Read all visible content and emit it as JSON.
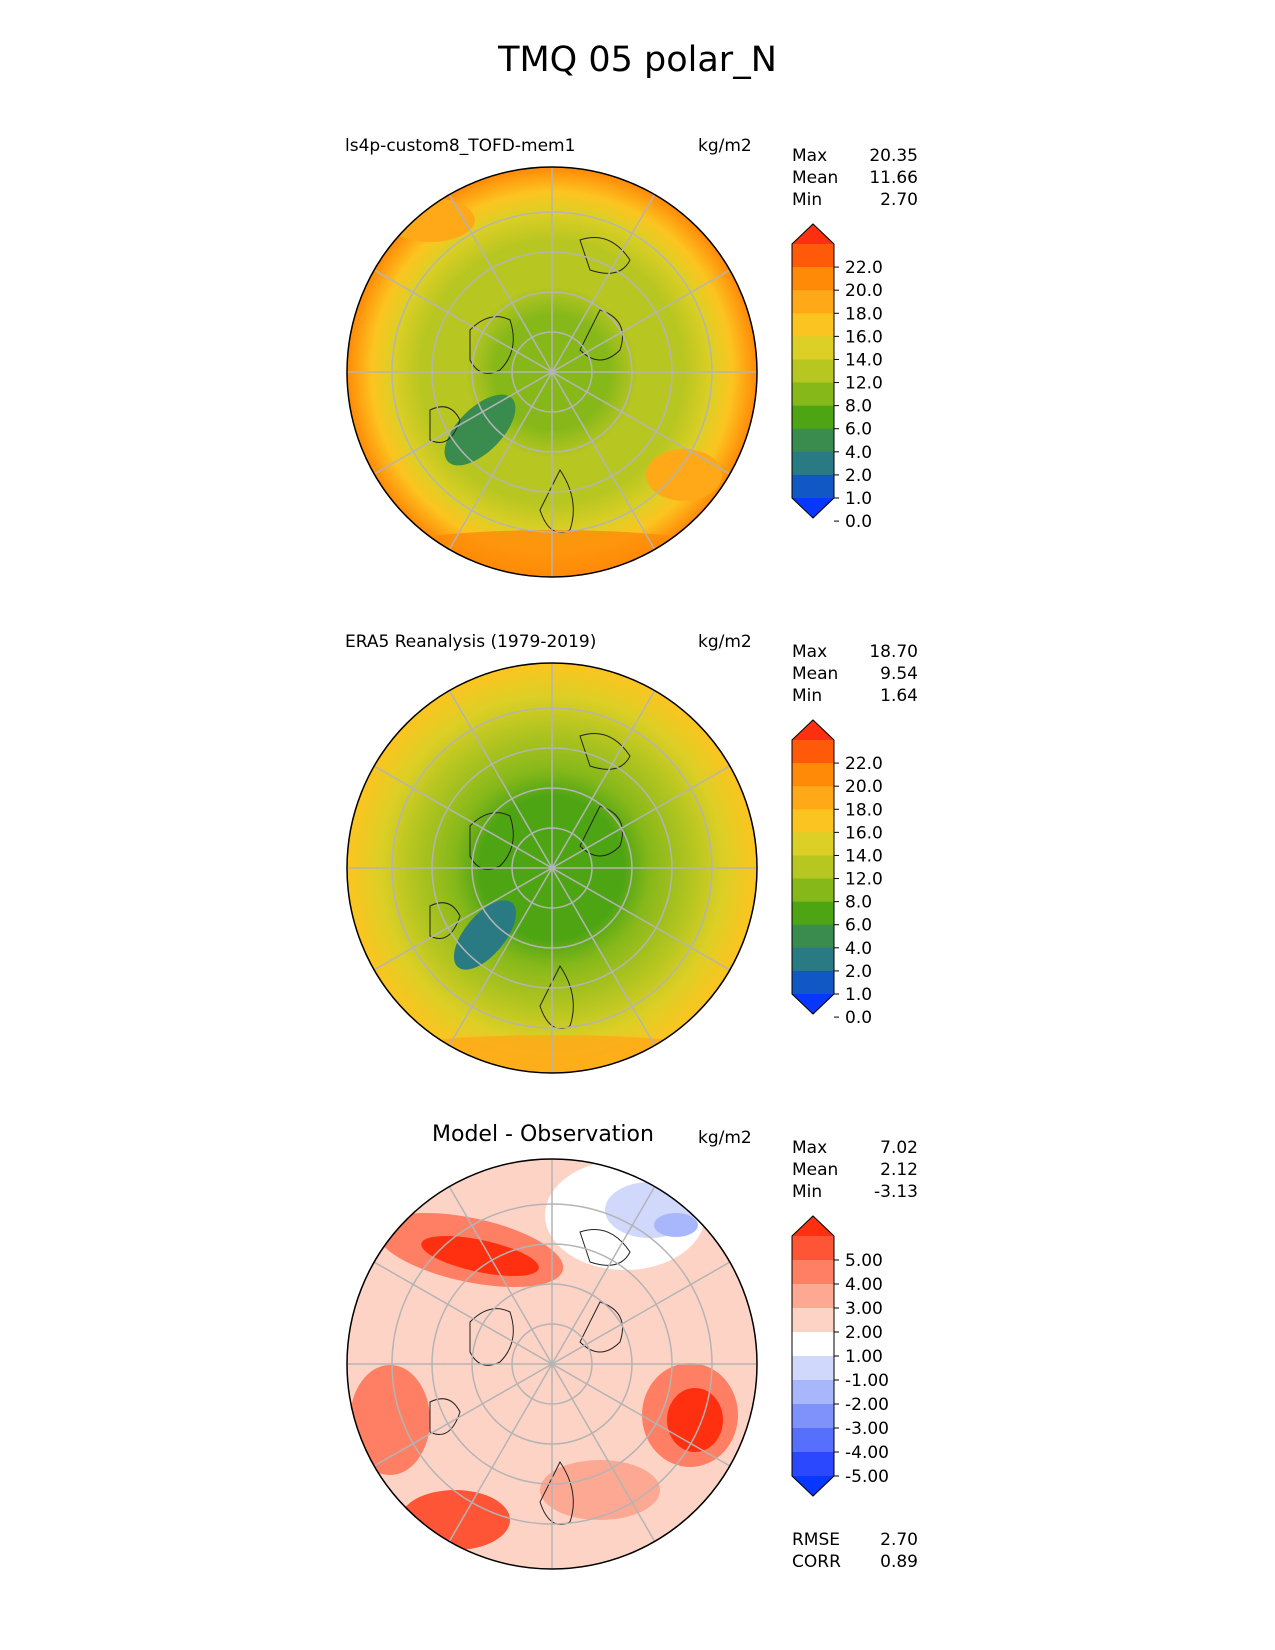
{
  "title": "TMQ 05 polar_N",
  "panels": [
    {
      "title": "ls4p-custom8_TOFD-mem1",
      "units": "kg/m2",
      "stats": [
        {
          "label": "Max",
          "value": "20.35"
        },
        {
          "label": "Mean",
          "value": "11.66"
        },
        {
          "label": "Min",
          "value": "2.70"
        }
      ],
      "colorbar": {
        "ticks": [
          "22.0",
          "20.0",
          "18.0",
          "16.0",
          "14.0",
          "12.0",
          "8.0",
          "6.0",
          "4.0",
          "2.0",
          "1.0",
          "0.0"
        ],
        "colors": [
          "#ff3010",
          "#ff5a0a",
          "#ff8a08",
          "#ffa818",
          "#fcc420",
          "#dccf25",
          "#b8c621",
          "#86b81a",
          "#4ea514",
          "#3a8c4e",
          "#2a7a84",
          "#1258c4",
          "#0838ff"
        ]
      }
    },
    {
      "title": "ERA5 Reanalysis (1979-2019)",
      "units": "kg/m2",
      "stats": [
        {
          "label": "Max",
          "value": "18.70"
        },
        {
          "label": "Mean",
          "value": "9.54"
        },
        {
          "label": "Min",
          "value": "1.64"
        }
      ],
      "colorbar": {
        "ticks": [
          "22.0",
          "20.0",
          "18.0",
          "16.0",
          "14.0",
          "12.0",
          "8.0",
          "6.0",
          "4.0",
          "2.0",
          "1.0",
          "0.0"
        ],
        "colors": [
          "#ff3010",
          "#ff5a0a",
          "#ff8a08",
          "#ffa818",
          "#fcc420",
          "#dccf25",
          "#b8c621",
          "#86b81a",
          "#4ea514",
          "#3a8c4e",
          "#2a7a84",
          "#1258c4",
          "#0838ff"
        ]
      }
    },
    {
      "title": "Model - Observation",
      "units": "kg/m2",
      "stats": [
        {
          "label": "Max",
          "value": "7.02"
        },
        {
          "label": "Mean",
          "value": "2.12"
        },
        {
          "label": "Min",
          "value": "-3.13"
        }
      ],
      "colorbar": {
        "ticks": [
          "5.00",
          "4.00",
          "3.00",
          "2.00",
          "1.00",
          "-1.00",
          "-2.00",
          "-3.00",
          "-4.00",
          "-5.00"
        ],
        "colors": [
          "#ff3010",
          "#fe5536",
          "#fe7f63",
          "#fca893",
          "#fdd3c6",
          "#ffffff",
          "#d0d8fc",
          "#a8b6fb",
          "#7f92fb",
          "#5670fd",
          "#2c48fe",
          "#0838ff"
        ]
      },
      "metrics": [
        {
          "label": "RMSE",
          "value": "2.70"
        },
        {
          "label": "CORR",
          "value": "0.89"
        }
      ]
    }
  ],
  "chart_data": [
    {
      "type": "heatmap",
      "projection": "north-polar-stereographic",
      "variable": "TMQ",
      "title": "ls4p-custom8_TOFD-mem1",
      "units": "kg/m2",
      "levels": [
        0.0,
        1.0,
        2.0,
        4.0,
        6.0,
        8.0,
        12.0,
        14.0,
        16.0,
        18.0,
        20.0,
        22.0
      ],
      "max": 20.35,
      "mean": 11.66,
      "min": 2.7
    },
    {
      "type": "heatmap",
      "projection": "north-polar-stereographic",
      "variable": "TMQ",
      "title": "ERA5 Reanalysis (1979-2019)",
      "units": "kg/m2",
      "levels": [
        0.0,
        1.0,
        2.0,
        4.0,
        6.0,
        8.0,
        12.0,
        14.0,
        16.0,
        18.0,
        20.0,
        22.0
      ],
      "max": 18.7,
      "mean": 9.54,
      "min": 1.64
    },
    {
      "type": "heatmap",
      "projection": "north-polar-stereographic",
      "variable": "TMQ difference",
      "title": "Model - Observation",
      "units": "kg/m2",
      "levels": [
        -5.0,
        -4.0,
        -3.0,
        -2.0,
        -1.0,
        1.0,
        2.0,
        3.0,
        4.0,
        5.0
      ],
      "max": 7.02,
      "mean": 2.12,
      "min": -3.13,
      "rmse": 2.7,
      "corr": 0.89
    }
  ]
}
